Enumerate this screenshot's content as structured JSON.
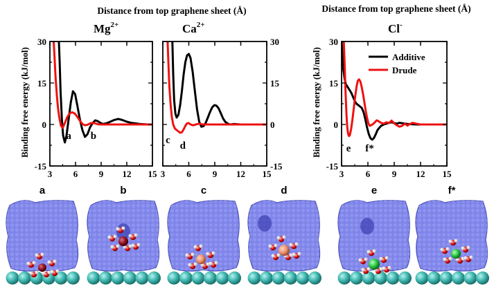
{
  "headers": {
    "left": "Distance from top graphene sheet (Å)",
    "right": "Distance from top graphene sheet (Å)"
  },
  "y_axis_label": "Binding free energy (kJ/mol)",
  "legend": {
    "additive": "Additive",
    "drude": "Drude"
  },
  "colors": {
    "additive": "#000000",
    "drude": "#ee1111",
    "surface": "#7f84e8",
    "graphene": "#3fb7b0",
    "oxygen": "#dd1111",
    "hydrogen": "#f4f4f4",
    "mg": "#8a1020",
    "ca": "#e8906e",
    "cl": "#23c43a"
  },
  "snapshot_labels": [
    "a",
    "b",
    "c",
    "d",
    "e",
    "f*"
  ],
  "chart_data": [
    {
      "type": "line",
      "title": "Mg",
      "title_sup": "2+",
      "xlim": [
        3,
        15
      ],
      "ylim": [
        -15,
        30
      ],
      "xticks": [
        "3",
        "6",
        "9",
        "12",
        "15"
      ],
      "yticks_left": [
        "-15",
        "0",
        "15",
        "30"
      ],
      "yticks_right": [],
      "series": [
        {
          "name": "Additive",
          "x": [
            4.05,
            4.15,
            4.25,
            4.4,
            4.55,
            4.75,
            4.95,
            5.2,
            5.45,
            5.7,
            5.95,
            6.2,
            6.5,
            6.8,
            7.1,
            7.4,
            7.7,
            8.0,
            8.3,
            8.6,
            8.9,
            9.2,
            9.6,
            10.0,
            10.5,
            11.0,
            11.5,
            12.0,
            12.5,
            13.0,
            13.5,
            14.0,
            14.5,
            15.0
          ],
          "y": [
            30,
            22,
            12,
            2,
            -4,
            -6.5,
            -4,
            2,
            8,
            12,
            11,
            7,
            2,
            -2,
            -4.5,
            -3.5,
            -1,
            0.5,
            1.5,
            1.2,
            0.6,
            0.2,
            0.4,
            0.9,
            1.6,
            2,
            1.6,
            1,
            0.6,
            0.4,
            0.2,
            0.1,
            0,
            0
          ]
        },
        {
          "name": "Drude",
          "x": [
            3.45,
            3.55,
            3.65,
            3.8,
            3.95,
            4.1,
            4.3,
            4.5,
            4.75,
            5.0,
            5.3,
            5.6,
            5.9,
            6.2,
            6.5,
            6.8,
            7.1,
            7.4,
            7.7,
            8.0,
            8.3,
            8.6,
            9.0,
            9.5,
            10.0,
            11.0,
            12.0,
            13.0,
            14.0,
            15.0
          ],
          "y": [
            30,
            24,
            18,
            11,
            6,
            2.5,
            -0.5,
            -1.2,
            0.5,
            2.5,
            4,
            4.4,
            4,
            2.8,
            1.4,
            0.2,
            -0.3,
            -0.1,
            0.4,
            0.6,
            0.4,
            0.1,
            0,
            0,
            0,
            0,
            0,
            0,
            0,
            0
          ]
        }
      ],
      "annotations": [
        {
          "label": "a",
          "x": 5.2,
          "y": -4
        },
        {
          "label": "b",
          "x": 8.1,
          "y": -4
        }
      ]
    },
    {
      "type": "line",
      "title": "Ca",
      "title_sup": "2+",
      "xlim": [
        3,
        15
      ],
      "ylim": [
        -15,
        30
      ],
      "xticks": [
        "3",
        "6",
        "9",
        "12",
        "15"
      ],
      "yticks_left": [],
      "yticks_right": [
        "-15",
        "0",
        "15",
        "30"
      ],
      "series": [
        {
          "name": "Additive",
          "x": [
            4.1,
            4.2,
            4.3,
            4.45,
            4.6,
            4.8,
            5.0,
            5.2,
            5.4,
            5.6,
            5.8,
            6.0,
            6.2,
            6.45,
            6.7,
            6.95,
            7.2,
            7.45,
            7.7,
            7.95,
            8.2,
            8.45,
            8.7,
            8.95,
            9.2,
            9.45,
            9.7,
            9.95,
            10.2,
            10.5,
            10.8,
            11.2,
            11.6,
            12.0,
            12.5,
            13.0,
            14.0,
            15.0
          ],
          "y": [
            30,
            18,
            9,
            4,
            2.5,
            3.5,
            7,
            12,
            18,
            22.5,
            25,
            25.5,
            24,
            19,
            12,
            5.5,
            1,
            -0.8,
            -0.6,
            0.6,
            2.5,
            4.5,
            6.2,
            7,
            6.8,
            5.8,
            4,
            2.2,
            1,
            0.3,
            0,
            0.2,
            0.1,
            0,
            0,
            0,
            0,
            0
          ]
        },
        {
          "name": "Drude",
          "x": [
            3.55,
            3.65,
            3.75,
            3.9,
            4.05,
            4.2,
            4.4,
            4.6,
            4.8,
            5.0,
            5.2,
            5.4,
            5.6,
            5.8,
            6.0,
            6.2,
            6.5,
            6.8,
            7.2,
            7.6,
            8.0,
            8.5,
            9.0,
            10.0,
            11.0,
            12.0,
            13.0,
            14.0,
            15.0
          ],
          "y": [
            30,
            22,
            14,
            7,
            2.5,
            0,
            -1.5,
            -2,
            -2.5,
            -3,
            -2.8,
            -1.8,
            -0.5,
            0.4,
            0.5,
            0,
            -0.3,
            0,
            0.3,
            0,
            0,
            0,
            0,
            0,
            0,
            0,
            0,
            0,
            0
          ]
        }
      ],
      "annotations": [
        {
          "label": "c",
          "x": 3.6,
          "y": -5.5
        },
        {
          "label": "d",
          "x": 5.3,
          "y": -7.5
        }
      ]
    },
    {
      "type": "line",
      "title": "Cl",
      "title_sup": "-",
      "xlim": [
        3,
        15
      ],
      "ylim": [
        -15,
        30
      ],
      "xticks": [
        "3",
        "6",
        "9",
        "12",
        "15"
      ],
      "yticks_left": [
        "-15",
        "0",
        "15",
        "30"
      ],
      "yticks_right": [],
      "series": [
        {
          "name": "Additive",
          "x": [
            3.0,
            3.1,
            3.2,
            3.35,
            3.5,
            3.7,
            3.9,
            4.1,
            4.3,
            4.5,
            4.7,
            4.9,
            5.1,
            5.3,
            5.5,
            5.7,
            5.9,
            6.1,
            6.3,
            6.5,
            6.7,
            6.9,
            7.1,
            7.3,
            7.5,
            7.8,
            8.1,
            8.4,
            8.7,
            9.0,
            9.3,
            9.6,
            10.0,
            10.5,
            11.0,
            11.5,
            12.0,
            13.0,
            14.0,
            15.0
          ],
          "y": [
            30,
            25,
            20,
            16.5,
            14.5,
            13.5,
            12.5,
            11.5,
            10,
            8.5,
            7.5,
            7,
            6.5,
            6,
            4.5,
            2,
            -1,
            -3.5,
            -5,
            -5.5,
            -4.8,
            -3.5,
            -2,
            -1.2,
            -0.5,
            0,
            0.3,
            0.6,
            0.8,
            0.5,
            0.3,
            0.6,
            0.4,
            0.2,
            0.1,
            0,
            0,
            0,
            0,
            0
          ]
        },
        {
          "name": "Drude",
          "x": [
            3.25,
            3.35,
            3.45,
            3.55,
            3.65,
            3.75,
            3.85,
            3.95,
            4.1,
            4.25,
            4.4,
            4.55,
            4.7,
            4.85,
            5.0,
            5.15,
            5.3,
            5.45,
            5.6,
            5.75,
            5.9,
            6.05,
            6.2,
            6.4,
            6.6,
            6.8,
            7.0,
            7.2,
            7.5,
            7.8,
            8.1,
            8.4,
            8.7,
            9.0,
            9.3,
            9.6,
            9.9,
            10.2,
            10.5,
            10.8,
            11.1,
            11.5,
            12.0,
            13.0,
            14.0,
            15.0
          ],
          "y": [
            30,
            22,
            12,
            4,
            -1,
            -3.5,
            -4.2,
            -3.8,
            -1.5,
            2,
            6,
            10,
            13.5,
            15.8,
            16.3,
            15.5,
            13.5,
            11,
            8,
            5,
            2.5,
            0.5,
            -0.5,
            -0.2,
            0.2,
            0.8,
            1.5,
            1.2,
            0.6,
            0.3,
            0.8,
            0.5,
            1.4,
            0.4,
            -0.3,
            -0.8,
            -0.5,
            0.3,
            -0.4,
            0.2,
            0.6,
            0.3,
            0,
            0,
            0,
            0
          ]
        }
      ],
      "annotations": [
        {
          "label": "e",
          "x": 3.8,
          "y": -8.5
        },
        {
          "label": "f*",
          "x": 6.2,
          "y": -8.5
        }
      ],
      "legend_position": "top-right"
    }
  ]
}
